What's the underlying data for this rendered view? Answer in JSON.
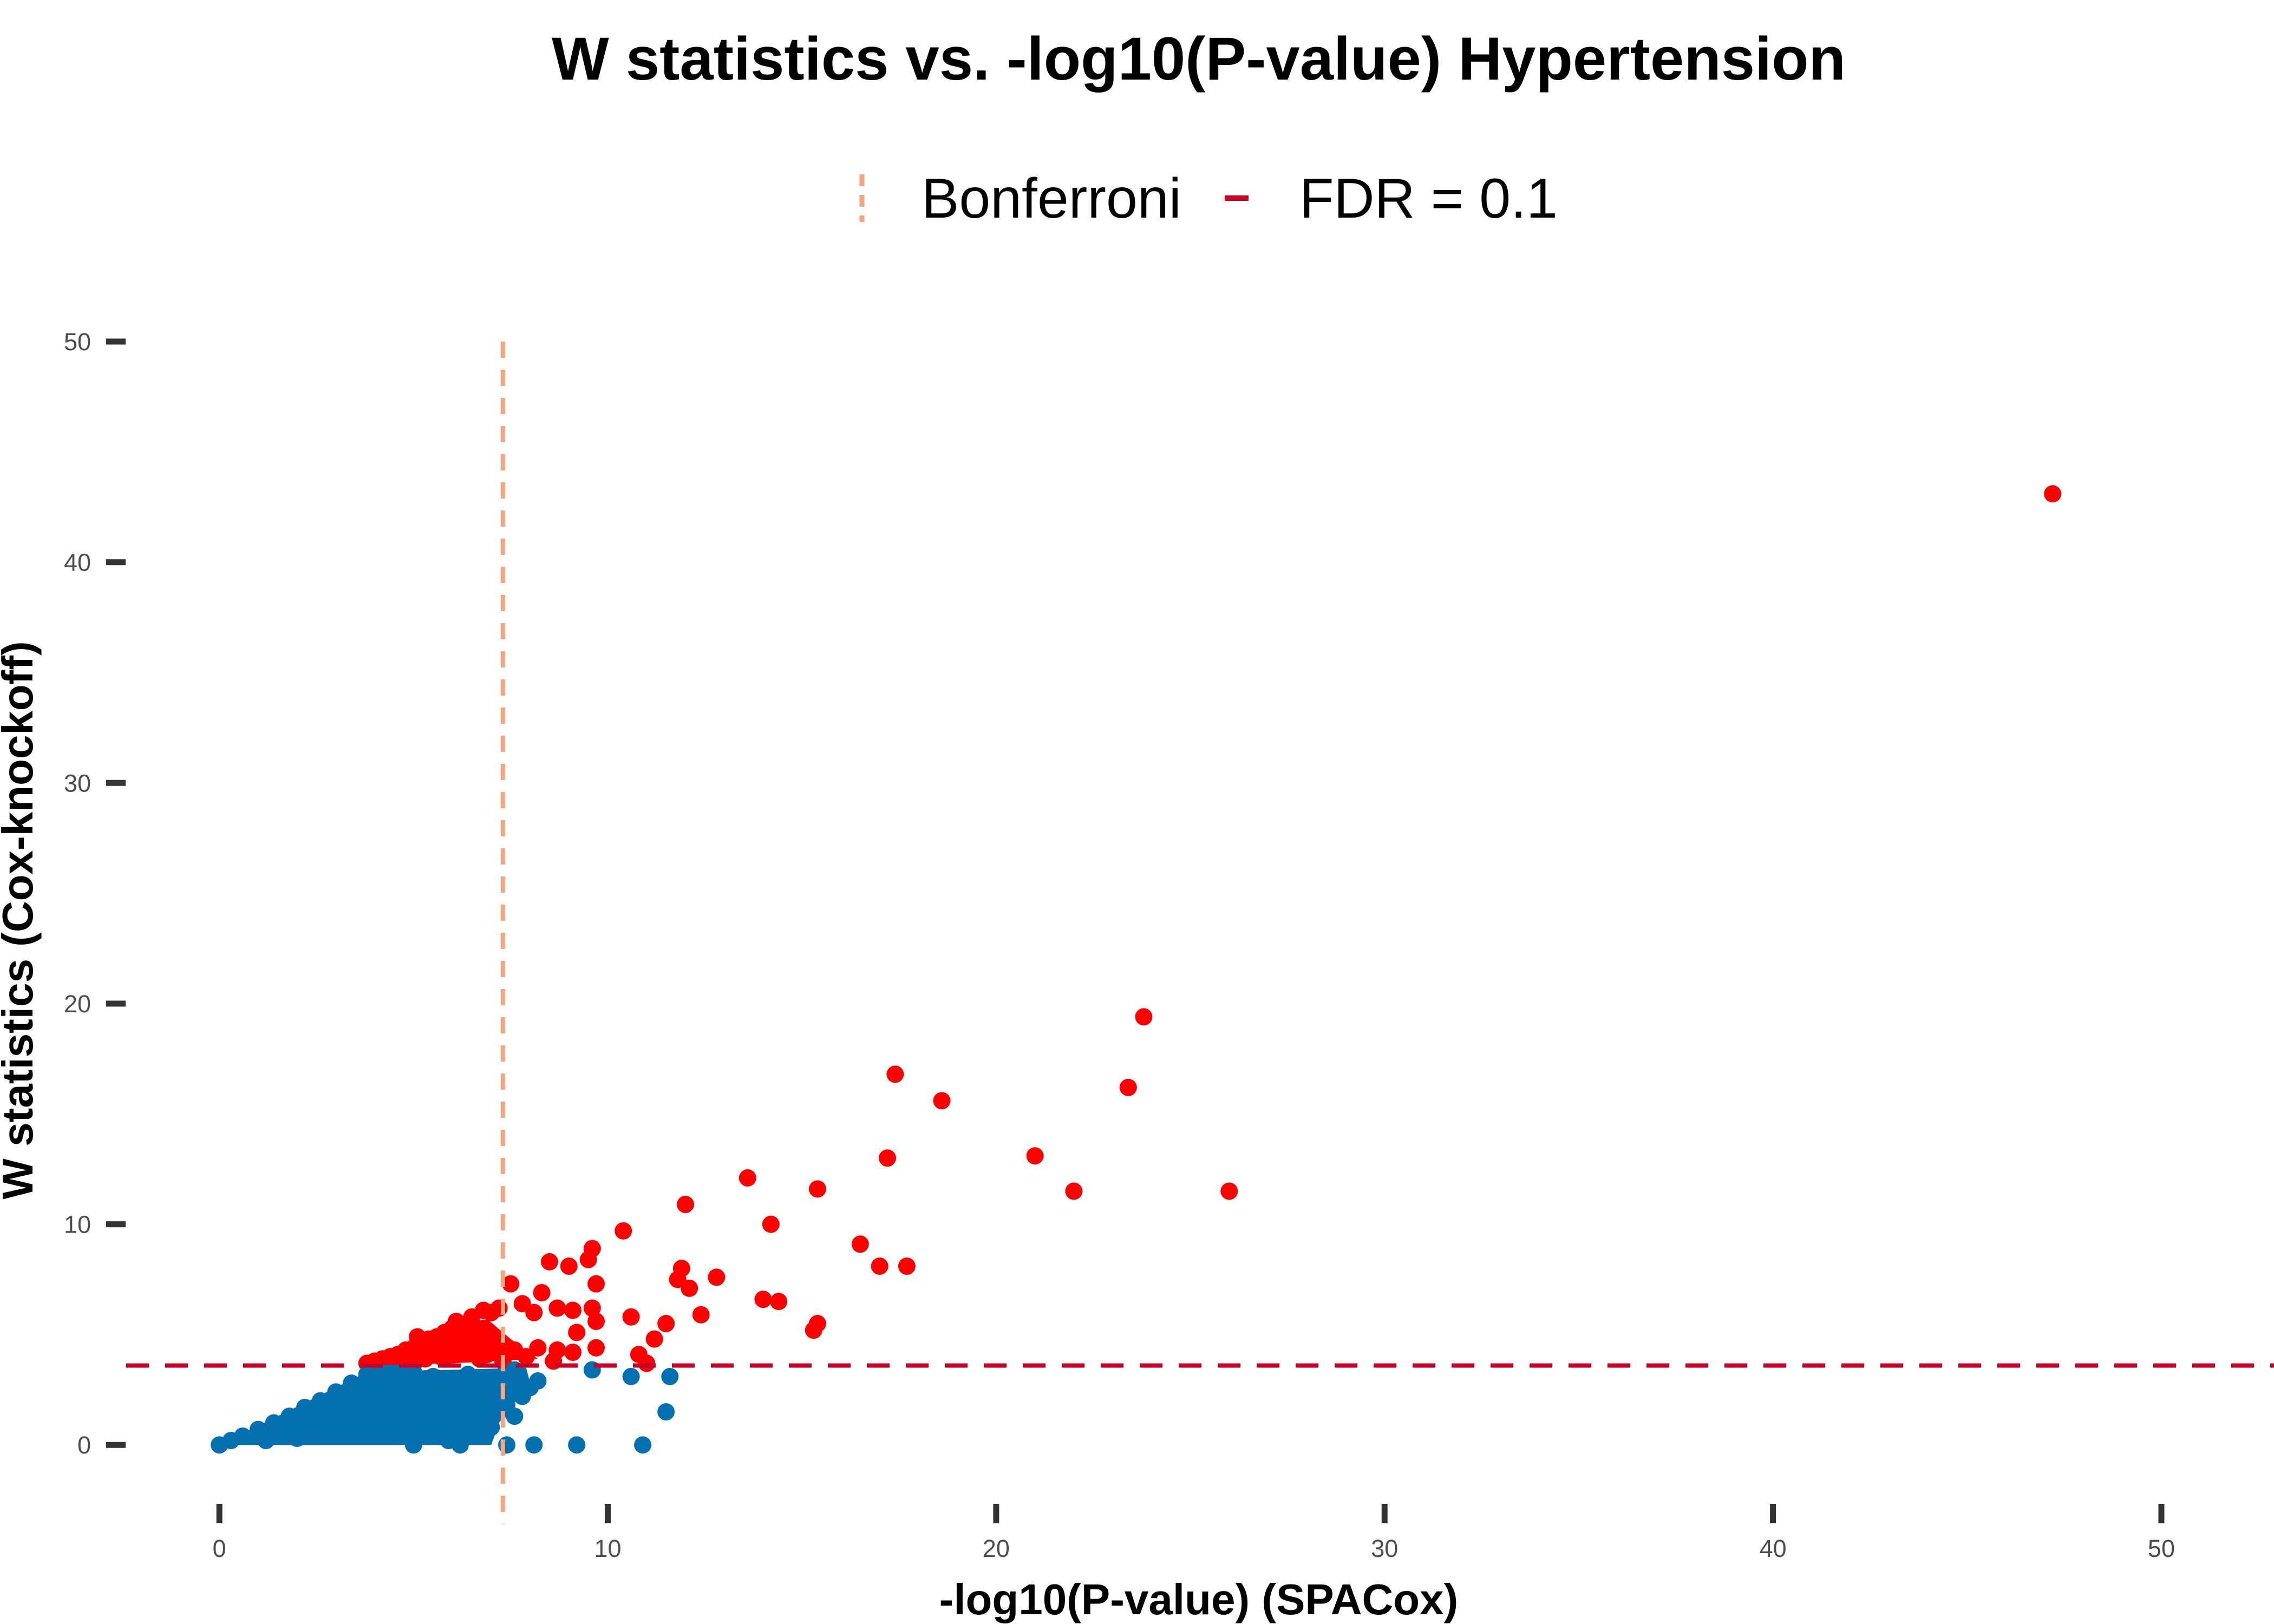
{
  "chart_data": {
    "type": "scatter",
    "title": "W statistics vs. -log10(P-value)  Hypertension",
    "xlabel": "-log10(P-value) (SPACox)",
    "ylabel": "W statistics (Cox-knockoff)",
    "xlim": [
      -2.4,
      52.9
    ],
    "ylim": [
      -3.6,
      50
    ],
    "x_ticks": [
      "0",
      "10",
      "20",
      "30",
      "40",
      "50"
    ],
    "y_ticks": [
      "0",
      "10",
      "20",
      "30",
      "40",
      "50"
    ],
    "grid": false,
    "legend": {
      "position": "top",
      "entries": [
        {
          "label": "Bonferroni",
          "color": "#f4a582",
          "style": "dashed-vertical"
        },
        {
          "label": "FDR = 0.1",
          "color": "#c6002a",
          "style": "dashed-horizontal"
        }
      ]
    },
    "reference_lines": [
      {
        "name": "Bonferroni",
        "orientation": "vertical",
        "value": 7.3,
        "color": "#f4a582"
      },
      {
        "name": "FDR = 0.1",
        "orientation": "horizontal",
        "value": 3.6,
        "color": "#c6002a"
      }
    ],
    "series": [
      {
        "color": "#ff0000",
        "points": [
          [
            47.2,
            43.1
          ],
          [
            23.8,
            19.4
          ],
          [
            17.4,
            16.8
          ],
          [
            18.6,
            15.6
          ],
          [
            23.4,
            16.2
          ],
          [
            17.2,
            13.0
          ],
          [
            21.0,
            13.1
          ],
          [
            22.0,
            11.5
          ],
          [
            26.0,
            11.5
          ],
          [
            13.6,
            12.1
          ],
          [
            15.4,
            11.6
          ],
          [
            12.0,
            10.9
          ],
          [
            14.2,
            10.0
          ],
          [
            10.4,
            9.7
          ],
          [
            16.5,
            9.1
          ],
          [
            9.6,
            8.9
          ],
          [
            17.0,
            8.1
          ],
          [
            17.7,
            8.1
          ],
          [
            9.5,
            8.4
          ],
          [
            8.5,
            8.3
          ],
          [
            9.0,
            8.1
          ],
          [
            11.9,
            8.0
          ],
          [
            12.8,
            7.6
          ],
          [
            11.8,
            7.5
          ],
          [
            9.7,
            7.3
          ],
          [
            12.1,
            7.1
          ],
          [
            7.5,
            7.3
          ],
          [
            8.3,
            6.9
          ],
          [
            14.0,
            6.6
          ],
          [
            14.4,
            6.5
          ],
          [
            7.8,
            6.4
          ],
          [
            8.7,
            6.2
          ],
          [
            9.6,
            6.2
          ],
          [
            9.1,
            6.1
          ],
          [
            12.4,
            5.9
          ],
          [
            10.6,
            5.8
          ],
          [
            8.1,
            6.0
          ],
          [
            7.2,
            6.2
          ],
          [
            7.0,
            6.0
          ],
          [
            6.8,
            6.1
          ],
          [
            6.5,
            5.8
          ],
          [
            11.5,
            5.5
          ],
          [
            15.4,
            5.5
          ],
          [
            15.3,
            5.2
          ],
          [
            9.7,
            5.6
          ],
          [
            9.2,
            5.1
          ],
          [
            11.2,
            4.8
          ],
          [
            10.8,
            4.1
          ],
          [
            11.0,
            3.7
          ],
          [
            9.7,
            4.4
          ],
          [
            8.2,
            4.4
          ],
          [
            8.7,
            4.3
          ],
          [
            9.1,
            4.2
          ],
          [
            7.6,
            4.3
          ],
          [
            7.1,
            4.5
          ],
          [
            6.6,
            4.6
          ],
          [
            7.9,
            4.0
          ],
          [
            8.6,
            3.8
          ],
          [
            6.3,
            5.4
          ],
          [
            6.0,
            5.3
          ],
          [
            5.8,
            5.1
          ],
          [
            5.6,
            4.9
          ],
          [
            5.4,
            4.8
          ],
          [
            5.2,
            4.6
          ],
          [
            5.0,
            4.4
          ],
          [
            4.8,
            4.3
          ],
          [
            4.6,
            4.1
          ],
          [
            4.4,
            4.0
          ],
          [
            4.2,
            3.9
          ],
          [
            4.0,
            3.8
          ],
          [
            3.8,
            3.7
          ],
          [
            5.9,
            4.5
          ],
          [
            6.2,
            4.7
          ],
          [
            6.4,
            4.2
          ],
          [
            5.7,
            4.0
          ],
          [
            5.5,
            4.3
          ],
          [
            6.7,
            3.9
          ],
          [
            6.9,
            4.1
          ],
          [
            7.3,
            3.8
          ],
          [
            5.3,
            3.9
          ],
          [
            4.9,
            3.8
          ],
          [
            4.5,
            3.7
          ],
          [
            6.1,
            5.6
          ],
          [
            6.6,
            5.2
          ],
          [
            5.1,
            4.9
          ]
        ]
      },
      {
        "color": "#0570b0",
        "points": [
          [
            0.0,
            0.0
          ],
          [
            0.3,
            0.2
          ],
          [
            0.6,
            0.4
          ],
          [
            1.0,
            0.7
          ],
          [
            1.4,
            1.0
          ],
          [
            1.8,
            1.3
          ],
          [
            2.2,
            1.7
          ],
          [
            2.6,
            2.0
          ],
          [
            3.0,
            2.4
          ],
          [
            3.4,
            2.8
          ],
          [
            3.8,
            3.2
          ],
          [
            4.2,
            3.4
          ],
          [
            4.6,
            3.5
          ],
          [
            5.0,
            3.3
          ],
          [
            5.5,
            3.1
          ],
          [
            6.0,
            2.9
          ],
          [
            6.5,
            2.5
          ],
          [
            7.0,
            3.0
          ],
          [
            7.6,
            3.4
          ],
          [
            8.0,
            2.6
          ],
          [
            8.2,
            2.9
          ],
          [
            7.8,
            2.2
          ],
          [
            7.4,
            1.8
          ],
          [
            7.2,
            1.5
          ],
          [
            6.8,
            1.2
          ],
          [
            7.6,
            1.3
          ],
          [
            8.1,
            0.0
          ],
          [
            9.2,
            0.0
          ],
          [
            10.9,
            0.0
          ],
          [
            7.4,
            0.0
          ],
          [
            6.2,
            0.0
          ],
          [
            5.0,
            0.0
          ],
          [
            4.5,
            0.6
          ],
          [
            5.2,
            1.4
          ],
          [
            5.8,
            2.0
          ],
          [
            6.3,
            1.6
          ],
          [
            4.8,
            2.3
          ],
          [
            5.6,
            2.6
          ],
          [
            9.6,
            3.4
          ],
          [
            10.6,
            3.1
          ],
          [
            11.6,
            3.1
          ],
          [
            11.5,
            1.5
          ],
          [
            2.0,
            0.3
          ],
          [
            3.0,
            0.8
          ],
          [
            4.0,
            1.5
          ],
          [
            2.5,
            1.2
          ],
          [
            3.6,
            2.1
          ],
          [
            1.2,
            0.2
          ],
          [
            1.6,
            0.6
          ],
          [
            6.6,
            0.5
          ],
          [
            5.9,
            0.2
          ],
          [
            7.0,
            0.8
          ],
          [
            6.4,
            3.2
          ],
          [
            5.3,
            3.0
          ],
          [
            4.3,
            2.7
          ]
        ]
      }
    ]
  }
}
